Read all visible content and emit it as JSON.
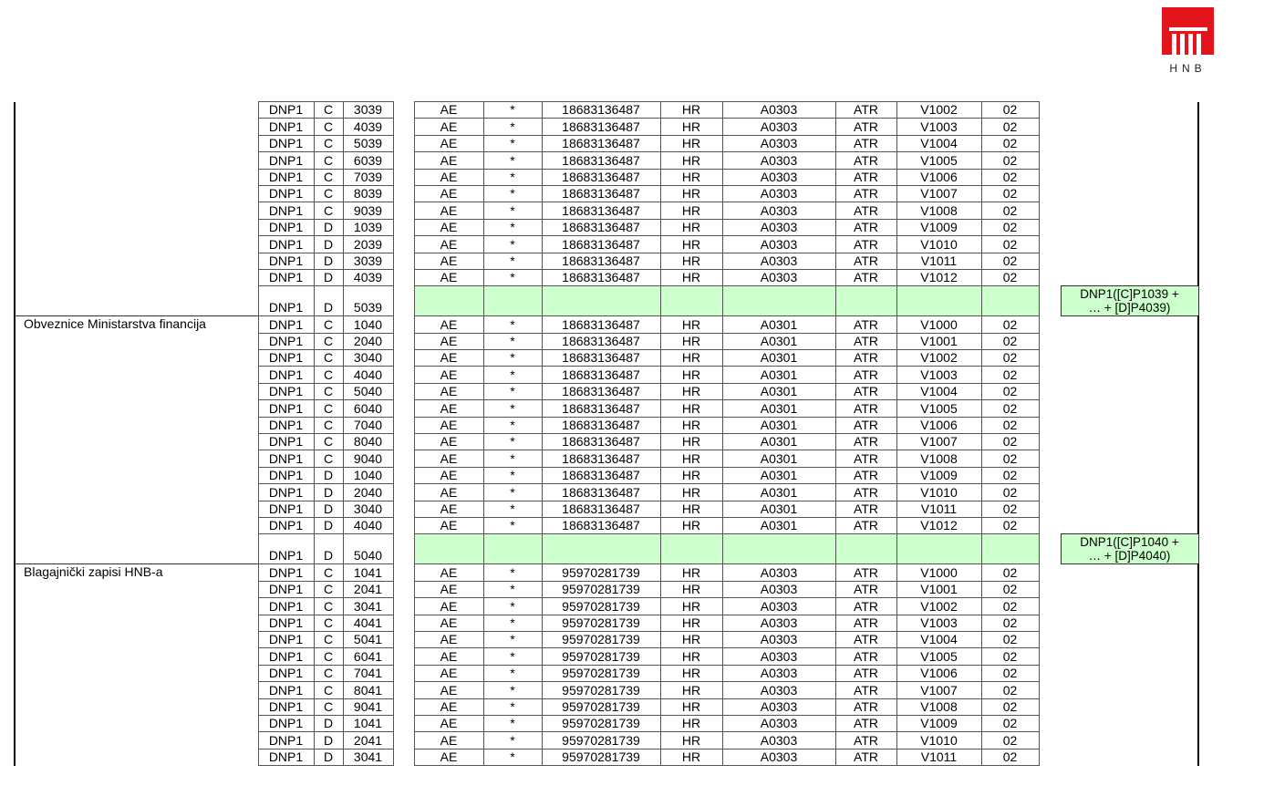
{
  "logo": {
    "text": "HNB",
    "color": "#e3141b"
  },
  "colors": {
    "total_fill": "#ccffcc"
  },
  "sections": [
    {
      "label": "",
      "rows": [
        [
          "DNP1",
          "C",
          "3039",
          "AE",
          "*",
          "18683136487",
          "HR",
          "A0303",
          "ATR",
          "V1002",
          "02"
        ],
        [
          "DNP1",
          "C",
          "4039",
          "AE",
          "*",
          "18683136487",
          "HR",
          "A0303",
          "ATR",
          "V1003",
          "02"
        ],
        [
          "DNP1",
          "C",
          "5039",
          "AE",
          "*",
          "18683136487",
          "HR",
          "A0303",
          "ATR",
          "V1004",
          "02"
        ],
        [
          "DNP1",
          "C",
          "6039",
          "AE",
          "*",
          "18683136487",
          "HR",
          "A0303",
          "ATR",
          "V1005",
          "02"
        ],
        [
          "DNP1",
          "C",
          "7039",
          "AE",
          "*",
          "18683136487",
          "HR",
          "A0303",
          "ATR",
          "V1006",
          "02"
        ],
        [
          "DNP1",
          "C",
          "8039",
          "AE",
          "*",
          "18683136487",
          "HR",
          "A0303",
          "ATR",
          "V1007",
          "02"
        ],
        [
          "DNP1",
          "C",
          "9039",
          "AE",
          "*",
          "18683136487",
          "HR",
          "A0303",
          "ATR",
          "V1008",
          "02"
        ],
        [
          "DNP1",
          "D",
          "1039",
          "AE",
          "*",
          "18683136487",
          "HR",
          "A0303",
          "ATR",
          "V1009",
          "02"
        ],
        [
          "DNP1",
          "D",
          "2039",
          "AE",
          "*",
          "18683136487",
          "HR",
          "A0303",
          "ATR",
          "V1010",
          "02"
        ],
        [
          "DNP1",
          "D",
          "3039",
          "AE",
          "*",
          "18683136487",
          "HR",
          "A0303",
          "ATR",
          "V1011",
          "02"
        ],
        [
          "DNP1",
          "D",
          "4039",
          "AE",
          "*",
          "18683136487",
          "HR",
          "A0303",
          "ATR",
          "V1012",
          "02"
        ]
      ],
      "total": {
        "cells": [
          "DNP1",
          "D",
          "5039"
        ],
        "formula": [
          "DNP1([C]P1039 +",
          "… + [D]P4039)"
        ]
      }
    },
    {
      "label": "Obveznice Ministarstva financija",
      "rows": [
        [
          "DNP1",
          "C",
          "1040",
          "AE",
          "*",
          "18683136487",
          "HR",
          "A0301",
          "ATR",
          "V1000",
          "02"
        ],
        [
          "DNP1",
          "C",
          "2040",
          "AE",
          "*",
          "18683136487",
          "HR",
          "A0301",
          "ATR",
          "V1001",
          "02"
        ],
        [
          "DNP1",
          "C",
          "3040",
          "AE",
          "*",
          "18683136487",
          "HR",
          "A0301",
          "ATR",
          "V1002",
          "02"
        ],
        [
          "DNP1",
          "C",
          "4040",
          "AE",
          "*",
          "18683136487",
          "HR",
          "A0301",
          "ATR",
          "V1003",
          "02"
        ],
        [
          "DNP1",
          "C",
          "5040",
          "AE",
          "*",
          "18683136487",
          "HR",
          "A0301",
          "ATR",
          "V1004",
          "02"
        ],
        [
          "DNP1",
          "C",
          "6040",
          "AE",
          "*",
          "18683136487",
          "HR",
          "A0301",
          "ATR",
          "V1005",
          "02"
        ],
        [
          "DNP1",
          "C",
          "7040",
          "AE",
          "*",
          "18683136487",
          "HR",
          "A0301",
          "ATR",
          "V1006",
          "02"
        ],
        [
          "DNP1",
          "C",
          "8040",
          "AE",
          "*",
          "18683136487",
          "HR",
          "A0301",
          "ATR",
          "V1007",
          "02"
        ],
        [
          "DNP1",
          "C",
          "9040",
          "AE",
          "*",
          "18683136487",
          "HR",
          "A0301",
          "ATR",
          "V1008",
          "02"
        ],
        [
          "DNP1",
          "D",
          "1040",
          "AE",
          "*",
          "18683136487",
          "HR",
          "A0301",
          "ATR",
          "V1009",
          "02"
        ],
        [
          "DNP1",
          "D",
          "2040",
          "AE",
          "*",
          "18683136487",
          "HR",
          "A0301",
          "ATR",
          "V1010",
          "02"
        ],
        [
          "DNP1",
          "D",
          "3040",
          "AE",
          "*",
          "18683136487",
          "HR",
          "A0301",
          "ATR",
          "V1011",
          "02"
        ],
        [
          "DNP1",
          "D",
          "4040",
          "AE",
          "*",
          "18683136487",
          "HR",
          "A0301",
          "ATR",
          "V1012",
          "02"
        ]
      ],
      "total": {
        "cells": [
          "DNP1",
          "D",
          "5040"
        ],
        "formula": [
          "DNP1([C]P1040 +",
          "… + [D]P4040)"
        ]
      }
    },
    {
      "label": "Blagajnički zapisi HNB-a",
      "rows": [
        [
          "DNP1",
          "C",
          "1041",
          "AE",
          "*",
          "95970281739",
          "HR",
          "A0303",
          "ATR",
          "V1000",
          "02"
        ],
        [
          "DNP1",
          "C",
          "2041",
          "AE",
          "*",
          "95970281739",
          "HR",
          "A0303",
          "ATR",
          "V1001",
          "02"
        ],
        [
          "DNP1",
          "C",
          "3041",
          "AE",
          "*",
          "95970281739",
          "HR",
          "A0303",
          "ATR",
          "V1002",
          "02"
        ],
        [
          "DNP1",
          "C",
          "4041",
          "AE",
          "*",
          "95970281739",
          "HR",
          "A0303",
          "ATR",
          "V1003",
          "02"
        ],
        [
          "DNP1",
          "C",
          "5041",
          "AE",
          "*",
          "95970281739",
          "HR",
          "A0303",
          "ATR",
          "V1004",
          "02"
        ],
        [
          "DNP1",
          "C",
          "6041",
          "AE",
          "*",
          "95970281739",
          "HR",
          "A0303",
          "ATR",
          "V1005",
          "02"
        ],
        [
          "DNP1",
          "C",
          "7041",
          "AE",
          "*",
          "95970281739",
          "HR",
          "A0303",
          "ATR",
          "V1006",
          "02"
        ],
        [
          "DNP1",
          "C",
          "8041",
          "AE",
          "*",
          "95970281739",
          "HR",
          "A0303",
          "ATR",
          "V1007",
          "02"
        ],
        [
          "DNP1",
          "C",
          "9041",
          "AE",
          "*",
          "95970281739",
          "HR",
          "A0303",
          "ATR",
          "V1008",
          "02"
        ],
        [
          "DNP1",
          "D",
          "1041",
          "AE",
          "*",
          "95970281739",
          "HR",
          "A0303",
          "ATR",
          "V1009",
          "02"
        ],
        [
          "DNP1",
          "D",
          "2041",
          "AE",
          "*",
          "95970281739",
          "HR",
          "A0303",
          "ATR",
          "V1010",
          "02"
        ],
        [
          "DNP1",
          "D",
          "3041",
          "AE",
          "*",
          "95970281739",
          "HR",
          "A0303",
          "ATR",
          "V1011",
          "02"
        ]
      ]
    }
  ]
}
